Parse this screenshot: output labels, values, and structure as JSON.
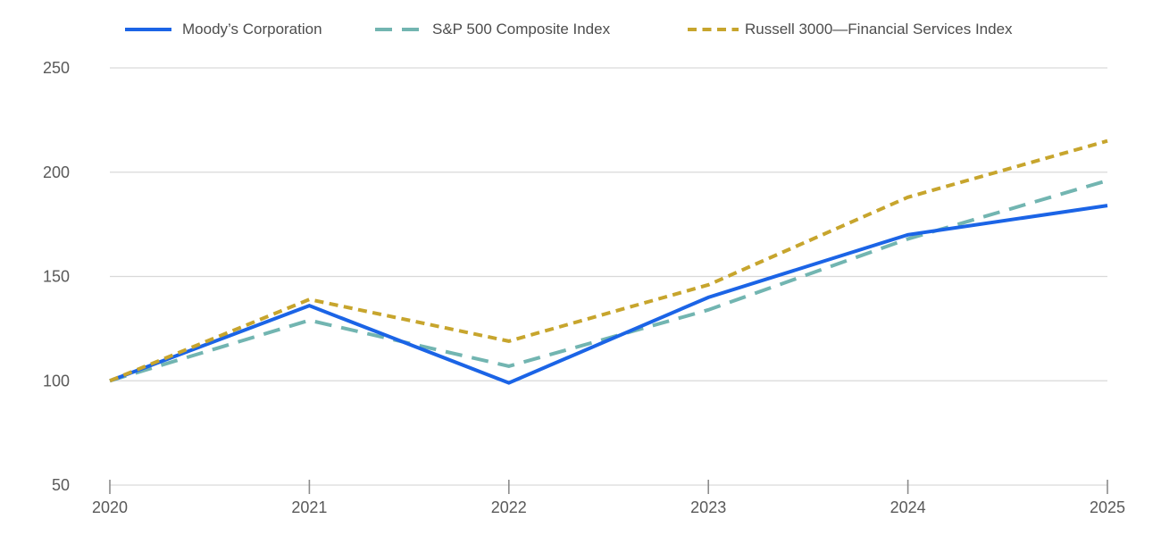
{
  "chart_data": {
    "type": "line",
    "x": [
      2020,
      2021,
      2022,
      2023,
      2024,
      2025
    ],
    "x_tick_labels": [
      "2020",
      "2021",
      "2022",
      "2023",
      "2024",
      "2025"
    ],
    "y_ticks": [
      250,
      200,
      150,
      100,
      50
    ],
    "ylim": [
      50,
      250
    ],
    "grid": true,
    "legend_position": "top",
    "series": [
      {
        "name": "Moody’s Corporation",
        "color": "#1b64e6",
        "style": "solid",
        "values": [
          100,
          136,
          99,
          140,
          170,
          184
        ]
      },
      {
        "name": "S&P 500 Composite Index",
        "color": "#72b5b1",
        "style": "long-dash",
        "values": [
          100,
          129,
          107,
          134,
          168,
          196
        ]
      },
      {
        "name": "Russell 3000—Financial Services Index",
        "color": "#c7a52d",
        "style": "short-dash",
        "values": [
          100,
          139,
          119,
          146,
          188,
          215
        ]
      }
    ]
  },
  "colors": {
    "gridline": "#d9d9d9",
    "axis_line": "#d9d9d9",
    "tick_mark": "#8c8c8c",
    "axis_label": "#595959",
    "legend_text": "#4d4d4d",
    "background": "#ffffff"
  }
}
